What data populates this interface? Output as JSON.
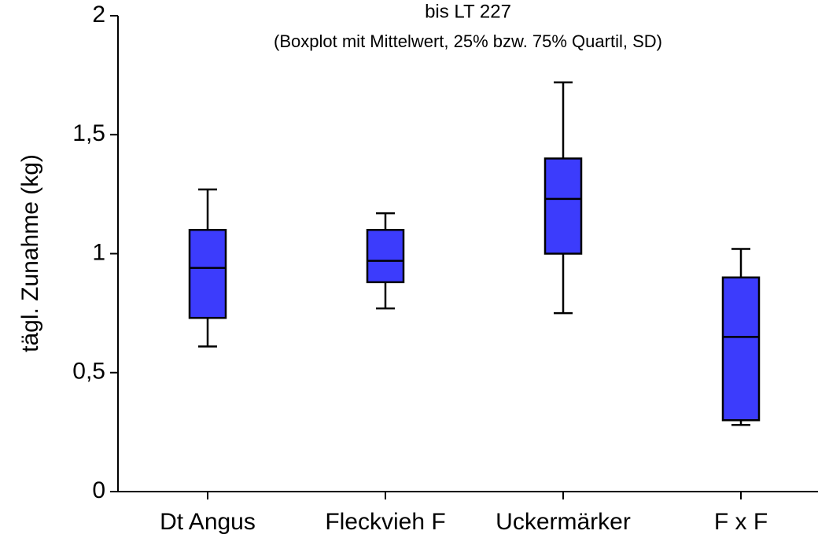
{
  "chart_data": {
    "type": "box",
    "title": "bis LT 227",
    "subtitle": "(Boxplot mit Mittelwert, 25% bzw. 75% Quartil, SD)",
    "y_label": "tägl. Zunahme (kg)",
    "categories": [
      "Dt Angus",
      "Fleckvieh F",
      "Uckermärker",
      "F x F"
    ],
    "min": [
      0.61,
      0.77,
      0.75,
      0.28
    ],
    "q1": [
      0.73,
      0.88,
      1.0,
      0.3
    ],
    "median": [
      0.94,
      0.97,
      1.23,
      0.65
    ],
    "q3": [
      1.1,
      1.1,
      1.4,
      0.9
    ],
    "max": [
      1.27,
      1.17,
      1.72,
      1.02
    ],
    "color": "#3c3cfc",
    "ylim": [
      0,
      2
    ],
    "yticks": [
      0,
      {
        "value": 0.5,
        "label": "0,5"
      },
      1,
      {
        "value": 1.5,
        "label": "1,5"
      },
      2
    ]
  }
}
